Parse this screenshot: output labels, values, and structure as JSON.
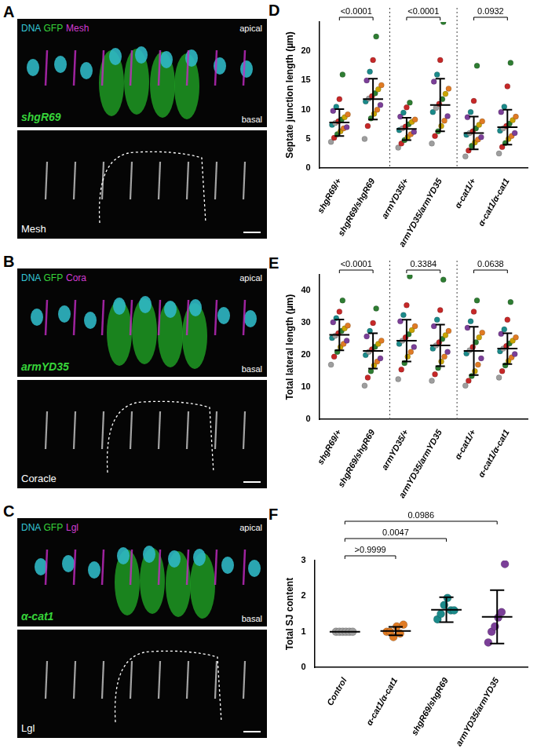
{
  "images": [
    {
      "panel": "A",
      "stains": [
        {
          "text": "DNA",
          "color": "#35c6d6"
        },
        {
          "text": "GFP",
          "color": "#37d43a"
        },
        {
          "text": "Mesh",
          "color": "#d23bd2"
        }
      ],
      "genotype": "shgR69",
      "apical": "apical",
      "basal": "basal",
      "channel": "Mesh"
    },
    {
      "panel": "B",
      "stains": [
        {
          "text": "DNA",
          "color": "#35c6d6"
        },
        {
          "text": "GFP",
          "color": "#37d43a"
        },
        {
          "text": "Cora",
          "color": "#d23bd2"
        }
      ],
      "genotype": "armYD35",
      "apical": "apical",
      "basal": "basal",
      "channel": "Coracle"
    },
    {
      "panel": "C",
      "stains": [
        {
          "text": "DNA",
          "color": "#35c6d6"
        },
        {
          "text": "GFP",
          "color": "#37d43a"
        },
        {
          "text": "Lgl",
          "color": "#d23bd2"
        }
      ],
      "genotype": "α-cat1",
      "apical": "apical",
      "basal": "basal",
      "channel": "Lgl"
    }
  ],
  "chart_data": [
    {
      "type": "scatter",
      "panel": "D",
      "y_label": "Septate junction length (µm)",
      "categories": [
        "shgR69/+",
        "shgR69/shgR69",
        "armYD35/+",
        "armYD35/armYD35",
        "α-cat1/+",
        "α-cat1/α-cat1"
      ],
      "groups": [
        {
          "values": [
            4.5,
            5.2,
            5.8,
            6.3,
            6.8,
            7.0,
            7.4,
            7.7,
            8.0,
            8.3,
            8.7,
            9.2,
            9.8,
            10.5,
            11.8,
            16.0
          ],
          "colors": [
            "#9e9e9e",
            "#c62828",
            "#2e7d32",
            "#c9a400",
            "#e07b24",
            "#7b3f98",
            "#1b8a8a",
            "#9e9e9e",
            "#c62828",
            "#2e7d32",
            "#c9a400",
            "#e07b24",
            "#7b3f98",
            "#1b8a8a",
            "#c62828",
            "#2e7d32"
          ],
          "mean": 7.8,
          "sd": 2.3
        },
        {
          "values": [
            5.0,
            7.2,
            8.5,
            9.3,
            10.0,
            10.8,
            11.4,
            11.9,
            12.3,
            12.8,
            13.5,
            14.2,
            15.0,
            16.5,
            18.5,
            22.5
          ],
          "colors": [
            "#9e9e9e",
            "#c62828",
            "#2e7d32",
            "#c9a400",
            "#e07b24",
            "#7b3f98",
            "#1b8a8a",
            "#9e9e9e",
            "#c62828",
            "#2e7d32",
            "#c9a400",
            "#e07b24",
            "#7b3f98",
            "#1b8a8a",
            "#c62828",
            "#2e7d32"
          ],
          "mean": 11.8,
          "sd": 3.5
        },
        {
          "values": [
            3.5,
            4.2,
            4.8,
            5.3,
            5.8,
            6.2,
            6.5,
            6.8,
            7.1,
            7.5,
            7.9,
            8.3,
            8.8,
            9.5,
            10.4,
            11.2
          ],
          "colors": [
            "#9e9e9e",
            "#c62828",
            "#2e7d32",
            "#c9a400",
            "#e07b24",
            "#7b3f98",
            "#1b8a8a",
            "#9e9e9e",
            "#c62828",
            "#2e7d32",
            "#c9a400",
            "#e07b24",
            "#7b3f98",
            "#1b8a8a",
            "#c62828",
            "#2e7d32"
          ],
          "mean": 6.7,
          "sd": 1.9
        },
        {
          "values": [
            4.2,
            5.5,
            6.3,
            7.2,
            8.1,
            8.9,
            9.6,
            10.3,
            11.0,
            11.8,
            12.7,
            13.6,
            14.8,
            16.0,
            18.5,
            25.0
          ],
          "colors": [
            "#9e9e9e",
            "#c62828",
            "#2e7d32",
            "#c9a400",
            "#e07b24",
            "#7b3f98",
            "#1b8a8a",
            "#9e9e9e",
            "#c62828",
            "#2e7d32",
            "#c9a400",
            "#e07b24",
            "#7b3f98",
            "#1b8a8a",
            "#c62828",
            "#2e7d32"
          ],
          "mean": 10.8,
          "sd": 4.5
        },
        {
          "values": [
            2.0,
            3.0,
            3.8,
            4.4,
            4.9,
            5.3,
            5.7,
            6.0,
            6.3,
            6.8,
            7.4,
            8.0,
            8.7,
            9.6,
            11.5,
            17.5
          ],
          "colors": [
            "#9e9e9e",
            "#c62828",
            "#2e7d32",
            "#c9a400",
            "#e07b24",
            "#7b3f98",
            "#1b8a8a",
            "#9e9e9e",
            "#c62828",
            "#2e7d32",
            "#c9a400",
            "#e07b24",
            "#7b3f98",
            "#1b8a8a",
            "#c62828",
            "#2e7d32"
          ],
          "mean": 6.0,
          "sd": 2.8
        },
        {
          "values": [
            2.5,
            3.6,
            4.3,
            5.0,
            5.5,
            6.0,
            6.4,
            6.8,
            7.2,
            7.6,
            8.2,
            8.8,
            9.6,
            10.5,
            14.0,
            18.0
          ],
          "colors": [
            "#9e9e9e",
            "#c62828",
            "#2e7d32",
            "#c9a400",
            "#e07b24",
            "#7b3f98",
            "#1b8a8a",
            "#9e9e9e",
            "#c62828",
            "#2e7d32",
            "#c9a400",
            "#e07b24",
            "#7b3f98",
            "#1b8a8a",
            "#c62828",
            "#2e7d32"
          ],
          "mean": 7.0,
          "sd": 3.0
        }
      ],
      "ylim": [
        0,
        25
      ],
      "yticks": [
        0,
        5,
        10,
        15,
        20
      ],
      "grid": false,
      "comparisons": [
        {
          "between": [
            0,
            1
          ],
          "label": "<0.0001"
        },
        {
          "between": [
            2,
            3
          ],
          "label": "<0.0001"
        },
        {
          "between": [
            4,
            5
          ],
          "label": "0.0932"
        }
      ]
    },
    {
      "type": "scatter",
      "panel": "E",
      "y_label": "Total lateral length (µm)",
      "categories": [
        "shgR69/+",
        "shgR69/shgR69",
        "armYD35/+",
        "armYD35/armYD35",
        "α-cat1/+",
        "α-cat1/α-cat1"
      ],
      "groups": [
        {
          "values": [
            17.0,
            19.5,
            21.0,
            22.5,
            23.5,
            24.5,
            25.3,
            26.0,
            26.8,
            27.5,
            28.3,
            29.2,
            30.2,
            31.5,
            33.5,
            37.0
          ],
          "colors": [
            "#9e9e9e",
            "#c62828",
            "#2e7d32",
            "#c9a400",
            "#e07b24",
            "#7b3f98",
            "#1b8a8a",
            "#9e9e9e",
            "#c62828",
            "#2e7d32",
            "#c9a400",
            "#e07b24",
            "#7b3f98",
            "#1b8a8a",
            "#c62828",
            "#2e7d32"
          ],
          "mean": 26.3,
          "sd": 4.8
        },
        {
          "values": [
            10.5,
            13.0,
            15.0,
            16.8,
            18.0,
            19.0,
            20.0,
            21.0,
            21.8,
            22.6,
            23.5,
            24.5,
            25.8,
            27.5,
            30.0,
            34.5
          ],
          "colors": [
            "#9e9e9e",
            "#c62828",
            "#2e7d32",
            "#c9a400",
            "#e07b24",
            "#7b3f98",
            "#1b8a8a",
            "#9e9e9e",
            "#c62828",
            "#2e7d32",
            "#c9a400",
            "#e07b24",
            "#7b3f98",
            "#1b8a8a",
            "#c62828",
            "#2e7d32"
          ],
          "mean": 21.3,
          "sd": 5.5
        },
        {
          "values": [
            12.5,
            15.5,
            17.5,
            19.5,
            21.0,
            22.5,
            23.5,
            24.5,
            25.5,
            26.5,
            27.8,
            29.0,
            30.5,
            32.5,
            35.5,
            44.5
          ],
          "colors": [
            "#9e9e9e",
            "#c62828",
            "#2e7d32",
            "#c9a400",
            "#e07b24",
            "#7b3f98",
            "#1b8a8a",
            "#9e9e9e",
            "#c62828",
            "#2e7d32",
            "#c9a400",
            "#e07b24",
            "#7b3f98",
            "#1b8a8a",
            "#c62828",
            "#2e7d32"
          ],
          "mean": 24.5,
          "sd": 6.5
        },
        {
          "values": [
            12.0,
            14.0,
            16.0,
            18.0,
            19.5,
            21.0,
            22.0,
            23.0,
            24.0,
            25.0,
            26.2,
            27.5,
            29.0,
            31.0,
            34.0,
            43.5
          ],
          "colors": [
            "#9e9e9e",
            "#c62828",
            "#2e7d32",
            "#c9a400",
            "#e07b24",
            "#7b3f98",
            "#1b8a8a",
            "#9e9e9e",
            "#c62828",
            "#2e7d32",
            "#c9a400",
            "#e07b24",
            "#7b3f98",
            "#1b8a8a",
            "#c62828",
            "#2e7d32"
          ],
          "mean": 23.0,
          "sd": 6.5
        },
        {
          "values": [
            10.5,
            12.0,
            13.5,
            15.0,
            17.0,
            19.0,
            20.5,
            21.5,
            22.5,
            24.0,
            25.5,
            27.0,
            28.5,
            30.5,
            33.5,
            37.0
          ],
          "colors": [
            "#9e9e9e",
            "#c62828",
            "#2e7d32",
            "#c9a400",
            "#e07b24",
            "#7b3f98",
            "#1b8a8a",
            "#9e9e9e",
            "#c62828",
            "#2e7d32",
            "#c9a400",
            "#e07b24",
            "#7b3f98",
            "#1b8a8a",
            "#c62828",
            "#2e7d32"
          ],
          "mean": 21.3,
          "sd": 7.5
        },
        {
          "values": [
            13.0,
            15.0,
            16.8,
            18.2,
            19.3,
            20.3,
            21.2,
            22.0,
            22.8,
            23.6,
            24.5,
            25.5,
            26.6,
            28.0,
            31.0,
            36.5
          ],
          "colors": [
            "#9e9e9e",
            "#c62828",
            "#2e7d32",
            "#c9a400",
            "#e07b24",
            "#7b3f98",
            "#1b8a8a",
            "#9e9e9e",
            "#c62828",
            "#2e7d32",
            "#c9a400",
            "#e07b24",
            "#7b3f98",
            "#1b8a8a",
            "#c62828",
            "#2e7d32"
          ],
          "mean": 22.0,
          "sd": 4.8
        }
      ],
      "ylim": [
        0,
        45
      ],
      "yticks": [
        0,
        10,
        20,
        30,
        40
      ],
      "grid": false,
      "comparisons": [
        {
          "between": [
            0,
            1
          ],
          "label": "<0.0001"
        },
        {
          "between": [
            2,
            3
          ],
          "label": "0.3384"
        },
        {
          "between": [
            4,
            5
          ],
          "label": "0.0638"
        }
      ]
    },
    {
      "type": "scatter",
      "panel": "F",
      "y_label": "Total SJ content",
      "categories": [
        "Control",
        "α-cat1/α-cat1",
        "shgR69/shgR69",
        "armYD35/armYD35"
      ],
      "groups": [
        {
          "values": [
            1,
            1,
            1,
            1,
            1,
            1
          ],
          "colors": [
            "#9e9e9e",
            "#9e9e9e",
            "#9e9e9e",
            "#9e9e9e",
            "#9e9e9e",
            "#9e9e9e"
          ],
          "mean": 1,
          "sd": 0
        },
        {
          "values": [
            1.0,
            1.0,
            0.85,
            1.15,
            0.95,
            1.2
          ],
          "colors": [
            "#e07b24",
            "#e07b24",
            "#e07b24",
            "#e07b24",
            "#e07b24",
            "#e07b24"
          ],
          "mean": 1.02,
          "sd": 0.12
        },
        {
          "values": [
            1.35,
            1.5,
            1.75,
            1.95,
            1.6,
            1.6
          ],
          "colors": [
            "#1b8a8a",
            "#1b8a8a",
            "#1b8a8a",
            "#1b8a8a",
            "#1b8a8a",
            "#1b8a8a"
          ],
          "mean": 1.62,
          "sd": 0.35
        },
        {
          "values": [
            0.7,
            1.0,
            1.15,
            1.4,
            1.55,
            2.9
          ],
          "colors": [
            "#7b3f98",
            "#7b3f98",
            "#7b3f98",
            "#7b3f98",
            "#7b3f98",
            "#7b3f98"
          ],
          "mean": 1.42,
          "sd": 0.75
        }
      ],
      "ylim": [
        0,
        3
      ],
      "yticks": [
        0,
        1,
        2,
        3
      ],
      "grid": false,
      "comparisons": [
        {
          "between": [
            0,
            1
          ],
          "label": ">0.9999"
        },
        {
          "between": [
            0,
            2
          ],
          "label": "0.0047"
        },
        {
          "between": [
            0,
            3
          ],
          "label": "0.0986"
        }
      ]
    }
  ]
}
